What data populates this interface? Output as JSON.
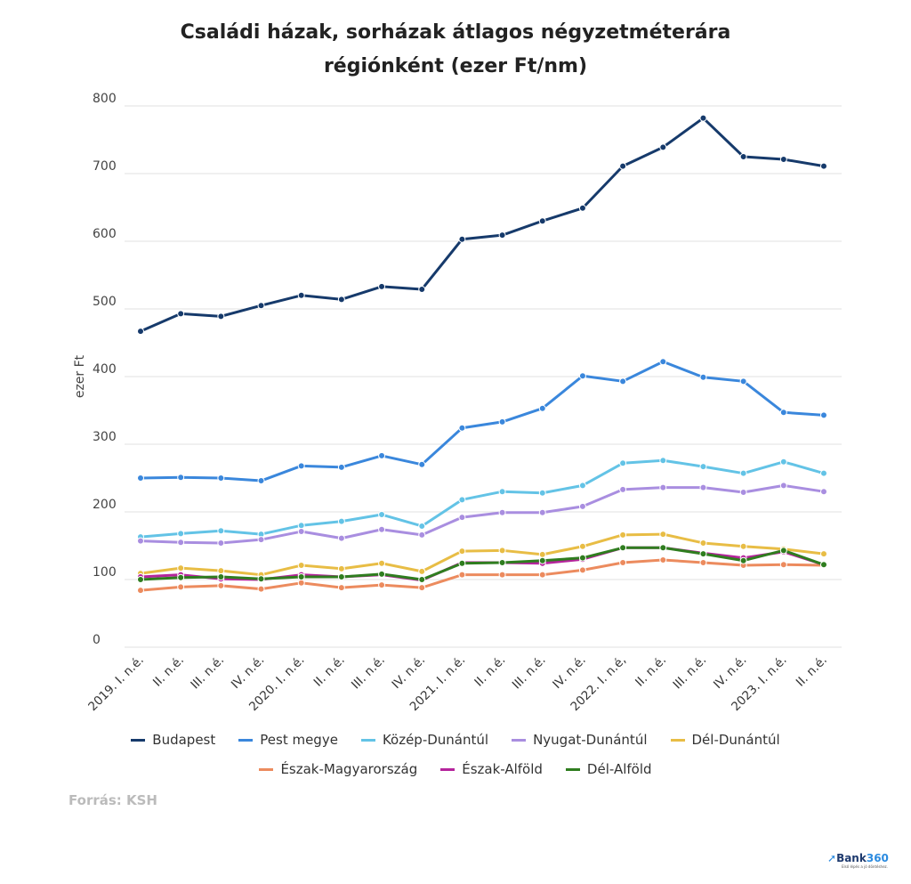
{
  "chart_data": {
    "type": "line",
    "title": "Családi házak, sorházak átlagos négyzetméterára régiónként (ezer Ft/nm)",
    "title_lines": [
      "Családi házak, sorházak átlagos négyzetméterára",
      "régiónként (ezer Ft/nm)"
    ],
    "ylabel": "ezer Ft",
    "xlabel": "",
    "ylim": [
      0,
      800
    ],
    "yticks": [
      0,
      100,
      200,
      300,
      400,
      500,
      600,
      700,
      800
    ],
    "grid": true,
    "legend_position": "bottom",
    "categories": [
      "2019. I. n.é.",
      "II. n.é.",
      "III. n.é.",
      "IV. n.é.",
      "2020. I. n.é.",
      "II. n.é.",
      "III. n.é.",
      "IV. n.é.",
      "2021. I. n.é.",
      "II. n.é.",
      "III. n.é.",
      "IV. n.é.",
      "2022. I. n.é,",
      "II. n.é.",
      "III. n.é.",
      "IV. n.é.",
      "2023. I. n.é.",
      "II. n.é."
    ],
    "series": [
      {
        "name": "Budapest",
        "color": "#163a6b",
        "values": [
          467,
          493,
          489,
          505,
          520,
          514,
          533,
          529,
          603,
          609,
          630,
          649,
          711,
          739,
          782,
          725,
          721,
          711
        ]
      },
      {
        "name": "Pest megye",
        "color": "#3a87dc",
        "values": [
          250,
          251,
          250,
          246,
          268,
          266,
          283,
          270,
          324,
          333,
          353,
          401,
          393,
          422,
          399,
          393,
          347,
          343
        ]
      },
      {
        "name": "Közép-Dunántúl",
        "color": "#63c3e6",
        "values": [
          163,
          168,
          172,
          167,
          180,
          186,
          196,
          179,
          218,
          230,
          228,
          239,
          272,
          276,
          267,
          257,
          274,
          257
        ]
      },
      {
        "name": "Nyugat-Dunántúl",
        "color": "#a98ee0",
        "values": [
          157,
          155,
          154,
          159,
          171,
          161,
          174,
          166,
          192,
          199,
          199,
          208,
          233,
          236,
          236,
          229,
          239,
          230
        ]
      },
      {
        "name": "Dél-Dunántúl",
        "color": "#e8bd45",
        "values": [
          109,
          117,
          113,
          107,
          121,
          116,
          124,
          112,
          142,
          143,
          137,
          149,
          166,
          167,
          154,
          149,
          145,
          138
        ]
      },
      {
        "name": "Észak-Magyarország",
        "color": "#ec8b5e",
        "values": [
          84,
          89,
          91,
          86,
          95,
          88,
          92,
          88,
          107,
          107,
          107,
          114,
          125,
          129,
          125,
          121,
          122,
          121
        ]
      },
      {
        "name": "Észak-Alföld",
        "color": "#b5249c",
        "values": [
          104,
          107,
          101,
          100,
          107,
          104,
          107,
          99,
          125,
          125,
          124,
          130,
          147,
          147,
          139,
          132,
          141,
          122
        ]
      },
      {
        "name": "Dél-Alföld",
        "color": "#2f7d1f",
        "values": [
          100,
          103,
          104,
          101,
          104,
          104,
          108,
          100,
          124,
          125,
          128,
          132,
          147,
          147,
          138,
          128,
          143,
          122
        ]
      }
    ]
  },
  "source": "Forrás: KSH",
  "logo": {
    "name": "Bank",
    "number": "360",
    "tagline": "Első lépés a jó döntéshez."
  }
}
